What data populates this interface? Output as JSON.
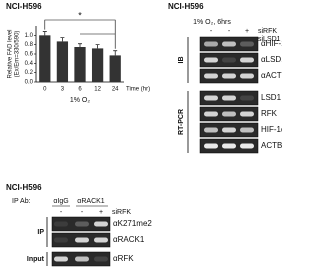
{
  "chart_data": {
    "type": "bar",
    "title": "NCI-H596",
    "ylabel": [
      "Relative FAD level",
      "(Ex/Em=330/590)"
    ],
    "xlabel": "1% O₂",
    "x_unit_label": "Time (hr)",
    "categories": [
      "0",
      "3",
      "6",
      "12",
      "24"
    ],
    "values": [
      1.0,
      0.87,
      0.75,
      0.72,
      0.57
    ],
    "errors": [
      0.08,
      0.08,
      0.07,
      0.08,
      0.1
    ],
    "color": "#333333",
    "ylim": [
      0,
      1.2
    ],
    "yticks": [
      {
        "value": 0,
        "label": "0.0"
      },
      {
        "value": 0.2,
        "label": "0.2"
      },
      {
        "value": 0.4,
        "label": "0.4"
      },
      {
        "value": 0.6,
        "label": "0.6"
      },
      {
        "value": 0.8,
        "label": "0.8"
      },
      {
        "value": 1.0,
        "label": "1.0"
      }
    ],
    "annotation": "*"
  },
  "blot_panel": {
    "title": "NCI-H596",
    "condition": "1% O₂, 6hrs",
    "treatments": [
      {
        "name": "siRFK",
        "signs": [
          "-",
          "-",
          "+"
        ]
      },
      {
        "name": "siLSD1",
        "signs": [
          "-",
          "+",
          "-"
        ]
      }
    ],
    "groups": [
      {
        "label": "IB",
        "rows": [
          "αHIF-1α",
          "αLSD1",
          "αACTB"
        ]
      },
      {
        "label": "RT-PCR",
        "rows": [
          "LSD1",
          "RFK",
          "HIF-1α",
          "ACTB"
        ]
      }
    ]
  },
  "ip_panel": {
    "title": "NCI-H596",
    "ip_label": "IP Ab:",
    "antibodies": [
      "αIgG",
      "αRACK1"
    ],
    "treatment": {
      "name": "siRFK",
      "signs": [
        "-",
        "-",
        "+"
      ]
    },
    "groups": [
      {
        "label": "IP",
        "rows": [
          "αK271me2",
          "αRACK1"
        ]
      },
      {
        "label": "Input",
        "rows": [
          "αRFK"
        ]
      }
    ]
  }
}
